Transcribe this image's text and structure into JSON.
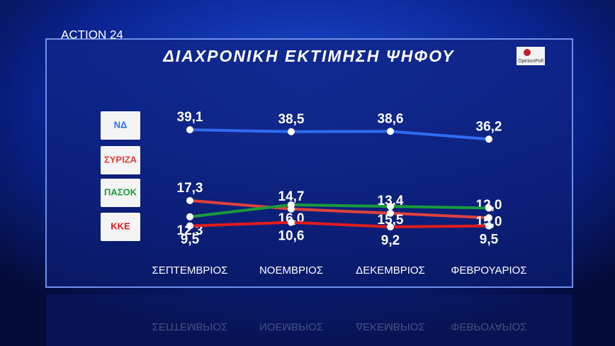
{
  "chart_data": {
    "type": "line",
    "title": "ΔΙΑΧΡΟΝΙΚΗ ΕΚΤΙΜΗΣΗ ΨΗΦΟΥ",
    "channel": "ACTION 24",
    "source": "OpinionPoll",
    "categories": [
      "ΣΕΠΤΕΜΒΡΙΟΣ",
      "ΝΟΕΜΒΡΙΟΣ",
      "ΔΕΚΕΜΒΡΙΟΣ",
      "ΦΕΒΡΟΥΑΡΙΟΣ"
    ],
    "series": [
      {
        "name": "ΝΔ",
        "color": "#2f6cf0",
        "values": [
          39.1,
          38.5,
          38.6,
          36.2
        ],
        "value_labels": [
          "39,1",
          "38,5",
          "38,6",
          "36,2"
        ]
      },
      {
        "name": "ΣΥΡΙΖΑ",
        "color": "#e0413a",
        "values": [
          17.3,
          14.7,
          13.4,
          12.0
        ],
        "value_labels": [
          "17,3",
          "14,7",
          "13,4",
          "12,0"
        ]
      },
      {
        "name": "ΠΑΣΟΚ",
        "color": "#1a9a3a",
        "values": [
          12.3,
          16.0,
          15.5,
          15.0
        ],
        "value_labels": [
          "12,3",
          "16,0",
          "15,5",
          "15,0"
        ]
      },
      {
        "name": "ΚΚΕ",
        "color": "#e01c1c",
        "values": [
          9.5,
          10.6,
          9.2,
          9.5
        ],
        "value_labels": [
          "9,5",
          "10,6",
          "9,2",
          "9,5"
        ]
      }
    ]
  }
}
